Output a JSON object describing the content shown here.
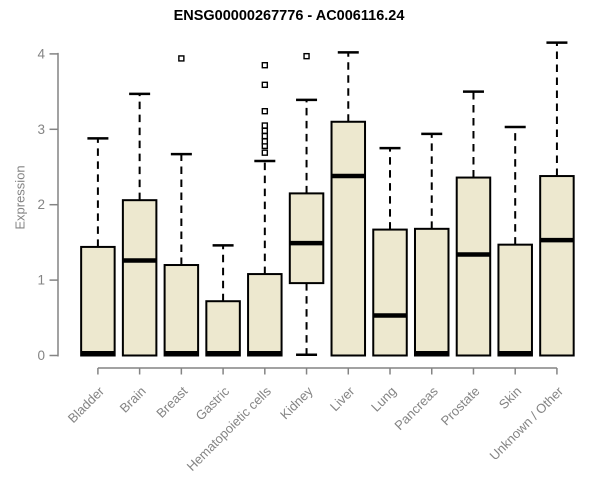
{
  "page": {
    "background": "#ffffff"
  },
  "chart_data": {
    "type": "boxplot",
    "title": "ENSG00000267776 - AC006116.24",
    "ylabel": "Expression",
    "xlabel": "",
    "ylim": [
      0,
      4.2
    ],
    "yticks": [
      0,
      1,
      2,
      3,
      4
    ],
    "grid": false,
    "legend": false,
    "categories": [
      "Bladder",
      "Brain",
      "Breast",
      "Gastric",
      "Hematopoietic cells",
      "Kidney",
      "Liver",
      "Lung",
      "Pancreas",
      "Prostate",
      "Skin",
      "Unknown / Other"
    ],
    "series": [
      {
        "category": "Bladder",
        "whisker_low": 0,
        "q1": 0,
        "median": 0.03,
        "q3": 1.44,
        "whisker_high": 2.88,
        "outliers": []
      },
      {
        "category": "Brain",
        "whisker_low": 0,
        "q1": 0,
        "median": 1.26,
        "q3": 2.06,
        "whisker_high": 3.47,
        "outliers": []
      },
      {
        "category": "Breast",
        "whisker_low": 0,
        "q1": 0,
        "median": 0.03,
        "q3": 1.2,
        "whisker_high": 2.67,
        "outliers": [
          3.94
        ]
      },
      {
        "category": "Gastric",
        "whisker_low": 0,
        "q1": 0,
        "median": 0.03,
        "q3": 0.72,
        "whisker_high": 1.46,
        "outliers": []
      },
      {
        "category": "Hematopoietic cells",
        "whisker_low": 0,
        "q1": 0,
        "median": 0.03,
        "q3": 1.08,
        "whisker_high": 2.58,
        "outliers": [
          2.69,
          2.78,
          2.84,
          2.91,
          2.98,
          3.05,
          3.24,
          3.59,
          3.85
        ]
      },
      {
        "category": "Kidney",
        "whisker_low": 0.01,
        "q1": 0.96,
        "median": 1.49,
        "q3": 2.15,
        "whisker_high": 3.39,
        "outliers": [
          3.97
        ]
      },
      {
        "category": "Liver",
        "whisker_low": 0,
        "q1": 0,
        "median": 2.38,
        "q3": 3.1,
        "whisker_high": 4.02,
        "outliers": []
      },
      {
        "category": "Lung",
        "whisker_low": 0,
        "q1": 0,
        "median": 0.53,
        "q3": 1.67,
        "whisker_high": 2.75,
        "outliers": []
      },
      {
        "category": "Pancreas",
        "whisker_low": 0,
        "q1": 0,
        "median": 0.03,
        "q3": 1.68,
        "whisker_high": 2.94,
        "outliers": []
      },
      {
        "category": "Prostate",
        "whisker_low": 0,
        "q1": 0,
        "median": 1.34,
        "q3": 2.36,
        "whisker_high": 3.5,
        "outliers": []
      },
      {
        "category": "Skin",
        "whisker_low": 0,
        "q1": 0,
        "median": 0.03,
        "q3": 1.47,
        "whisker_high": 3.03,
        "outliers": []
      },
      {
        "category": "Unknown / Other",
        "whisker_low": 0,
        "q1": 0,
        "median": 1.53,
        "q3": 2.38,
        "whisker_high": 4.15,
        "outliers": []
      }
    ],
    "colors": {
      "box_fill": "#EDE8CF",
      "box_border": "#000000",
      "median": "#000000",
      "whisker": "#000000",
      "outlier_fill": "#ffffff",
      "axis": "#848484",
      "tick_label": "#848484",
      "title": "#000000"
    }
  }
}
